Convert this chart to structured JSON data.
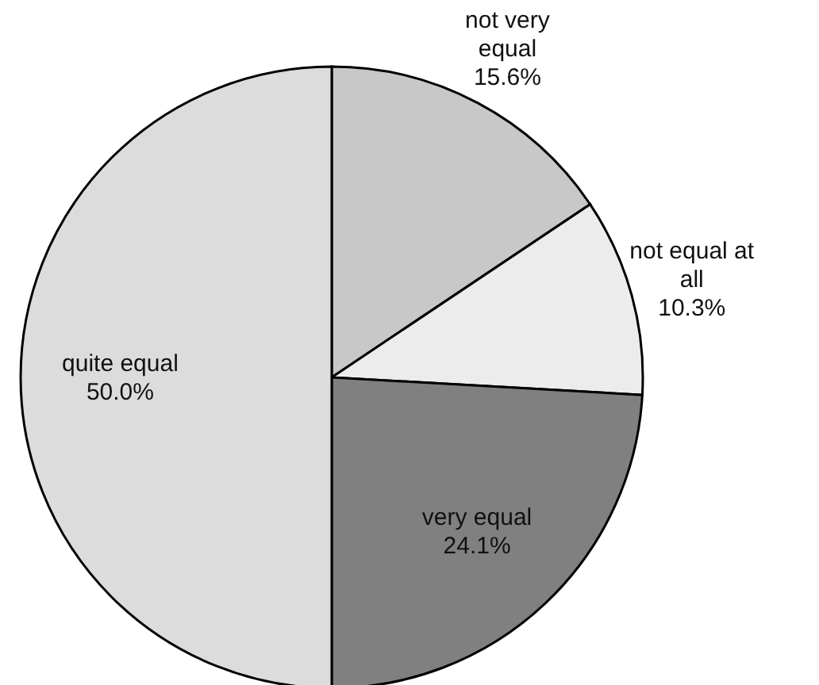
{
  "chart_data": {
    "type": "pie",
    "categories": [
      "not very equal",
      "not equal at all",
      "very equal",
      "quite equal"
    ],
    "values": [
      15.6,
      10.3,
      24.1,
      50.0
    ],
    "colors": [
      "#c8c8c8",
      "#ececec",
      "#808080",
      "#dcdcdc"
    ],
    "value_labels": [
      "15.6%",
      "10.3%",
      "24.1%",
      "50.0%"
    ],
    "legend": false
  }
}
